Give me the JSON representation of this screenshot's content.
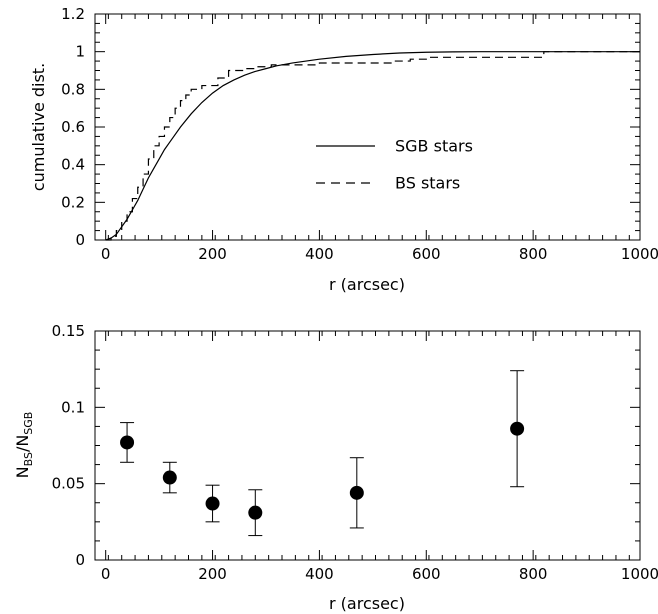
{
  "chart_data": [
    {
      "type": "line",
      "xlabel": "r (arcsec)",
      "ylabel": "cumulative dist.",
      "xlim": [
        -20,
        1000
      ],
      "ylim": [
        0,
        1.2
      ],
      "xticks": [
        0,
        200,
        400,
        600,
        800,
        1000
      ],
      "yticks": [
        0,
        0.2,
        0.4,
        0.6,
        0.8,
        1,
        1.2
      ],
      "xtick_labels": [
        "0",
        "200",
        "400",
        "600",
        "800",
        "1000"
      ],
      "ytick_labels": [
        "0",
        "0.2",
        "0.4",
        "0.6",
        "0.8",
        "1",
        "1.2"
      ],
      "legend_position": "center-right",
      "series": [
        {
          "name": "SGB stars",
          "style": "solid",
          "x": [
            0,
            10,
            20,
            30,
            40,
            50,
            60,
            70,
            80,
            90,
            100,
            110,
            120,
            140,
            160,
            180,
            200,
            220,
            240,
            260,
            280,
            300,
            320,
            350,
            400,
            450,
            500,
            550,
            600,
            650,
            700,
            800,
            900,
            1000
          ],
          "y": [
            0,
            0.01,
            0.03,
            0.07,
            0.11,
            0.16,
            0.21,
            0.27,
            0.33,
            0.38,
            0.43,
            0.48,
            0.52,
            0.6,
            0.67,
            0.73,
            0.78,
            0.82,
            0.85,
            0.875,
            0.895,
            0.91,
            0.925,
            0.94,
            0.96,
            0.975,
            0.985,
            0.993,
            0.997,
            0.999,
            1,
            1,
            1,
            1
          ]
        },
        {
          "name": "BS stars",
          "style": "dashed",
          "x": [
            0,
            10,
            20,
            30,
            40,
            50,
            60,
            70,
            80,
            90,
            100,
            110,
            120,
            130,
            140,
            150,
            160,
            170,
            180,
            190,
            200,
            210,
            220,
            230,
            240,
            250,
            260,
            270,
            280,
            290,
            300,
            310,
            320,
            340,
            360,
            380,
            400,
            420,
            440,
            480,
            500,
            540,
            560,
            570,
            580,
            600,
            620,
            700,
            810,
            820,
            900,
            1000
          ],
          "y": [
            0,
            0.02,
            0.05,
            0.1,
            0.15,
            0.22,
            0.28,
            0.35,
            0.43,
            0.5,
            0.55,
            0.6,
            0.65,
            0.7,
            0.74,
            0.77,
            0.8,
            0.8,
            0.82,
            0.82,
            0.82,
            0.86,
            0.86,
            0.9,
            0.9,
            0.9,
            0.91,
            0.91,
            0.92,
            0.92,
            0.92,
            0.93,
            0.93,
            0.93,
            0.93,
            0.93,
            0.94,
            0.94,
            0.94,
            0.94,
            0.94,
            0.95,
            0.95,
            0.96,
            0.96,
            0.97,
            0.97,
            0.97,
            0.97,
            1,
            1,
            1
          ]
        }
      ]
    },
    {
      "type": "scatter",
      "xlabel": "r (arcsec)",
      "ylabel": "N_BS/N_SGB",
      "xlim": [
        -20,
        1000
      ],
      "ylim": [
        0,
        0.15
      ],
      "xticks": [
        0,
        200,
        400,
        600,
        800,
        1000
      ],
      "yticks": [
        0,
        0.05,
        0.1,
        0.15
      ],
      "xtick_labels": [
        "0",
        "200",
        "400",
        "600",
        "800",
        "1000"
      ],
      "ytick_labels": [
        "0",
        "0.05",
        "0.1",
        "0.15"
      ],
      "series": [
        {
          "x": [
            40,
            120,
            200,
            280,
            470,
            770
          ],
          "y": [
            0.077,
            0.054,
            0.037,
            0.031,
            0.044,
            0.086
          ],
          "yerr": [
            0.013,
            0.01,
            0.012,
            0.015,
            0.023,
            0.038
          ]
        }
      ]
    }
  ]
}
